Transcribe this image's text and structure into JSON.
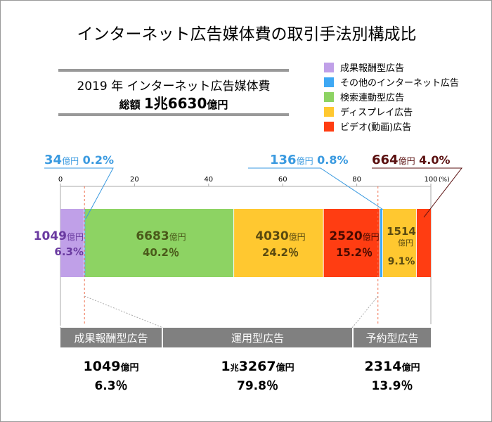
{
  "chart_data": {
    "type": "bar",
    "orientation": "horizontal-stacked-100",
    "title": "インターネット広告媒体費の取引手法別構成比",
    "summary": {
      "line1": "2019 年 インターネット広告媒体費",
      "line2_prefix": "総額",
      "line2_value": "1兆6630",
      "line2_unit": "億円"
    },
    "xlim": [
      0,
      100
    ],
    "xticks": [
      "0",
      "20",
      "40",
      "60",
      "80",
      "100"
    ],
    "xunit": "(%)",
    "legend_position": "top-right",
    "legend": [
      {
        "name": "成果報酬型広告",
        "color": "#c0a0e8"
      },
      {
        "name": "その他のインターネット広告",
        "color": "#3ea8f4"
      },
      {
        "name": "検索連動型広告",
        "color": "#8dd363"
      },
      {
        "name": "ディスプレイ広告",
        "color": "#ffc830"
      },
      {
        "name": "ビデオ(動画)広告",
        "color": "#ff3d12"
      }
    ],
    "segments": [
      {
        "category": "成果報酬型広告",
        "value_oku": "1049",
        "unit": "億円",
        "percent": 6.3,
        "pct_label": "6.3%",
        "color": "#c0a0e8",
        "text_color": "#6a3aa0"
      },
      {
        "category": "その他のインターネット広告",
        "value_oku": "34",
        "unit": "億円",
        "percent": 0.2,
        "pct_label": "0.2%",
        "color": "#3ea8f4",
        "text_color": "#3a9ae0"
      },
      {
        "category": "検索連動型広告",
        "value_oku": "6683",
        "unit": "億円",
        "percent": 40.2,
        "pct_label": "40.2％",
        "color": "#8dd363",
        "text_color": "#4a5a1a"
      },
      {
        "category": "ディスプレイ広告",
        "value_oku": "4030",
        "unit": "億円",
        "percent": 24.2,
        "pct_label": "24.2％",
        "color": "#ffc830",
        "text_color": "#5a4a10"
      },
      {
        "category": "ビデオ(動画)広告",
        "value_oku": "2520",
        "unit": "億円",
        "percent": 15.2,
        "pct_label": "15.2％",
        "color": "#ff3d12",
        "text_color": "#4a0a00"
      },
      {
        "category": "その他のインターネット広告",
        "value_oku": "136",
        "unit": "億円",
        "percent": 0.8,
        "pct_label": "0.8%",
        "color": "#3ea8f4",
        "text_color": "#3a9ae0"
      },
      {
        "category": "ディスプレイ広告",
        "value_oku": "1514",
        "unit": "億円",
        "percent": 9.1,
        "pct_label": "9.1%",
        "color": "#ffc830",
        "text_color": "#5a4a10"
      },
      {
        "category": "ビデオ(動画)広告",
        "value_oku": "664",
        "unit": "億円",
        "percent": 4.0,
        "pct_label": "4.0%",
        "color": "#ff3d12",
        "text_color": "#5a1010"
      }
    ],
    "groups": [
      {
        "name": "成果報酬型広告",
        "value": "1049",
        "unit": "億円",
        "pct": "6.3％"
      },
      {
        "name": "運用型広告",
        "value_prefix": "1",
        "value_mid": "兆",
        "value": "3267",
        "unit": "億円",
        "pct": "79.8％"
      },
      {
        "name": "予約型広告",
        "value": "2314",
        "unit": "億円",
        "pct": "13.9％"
      }
    ]
  }
}
